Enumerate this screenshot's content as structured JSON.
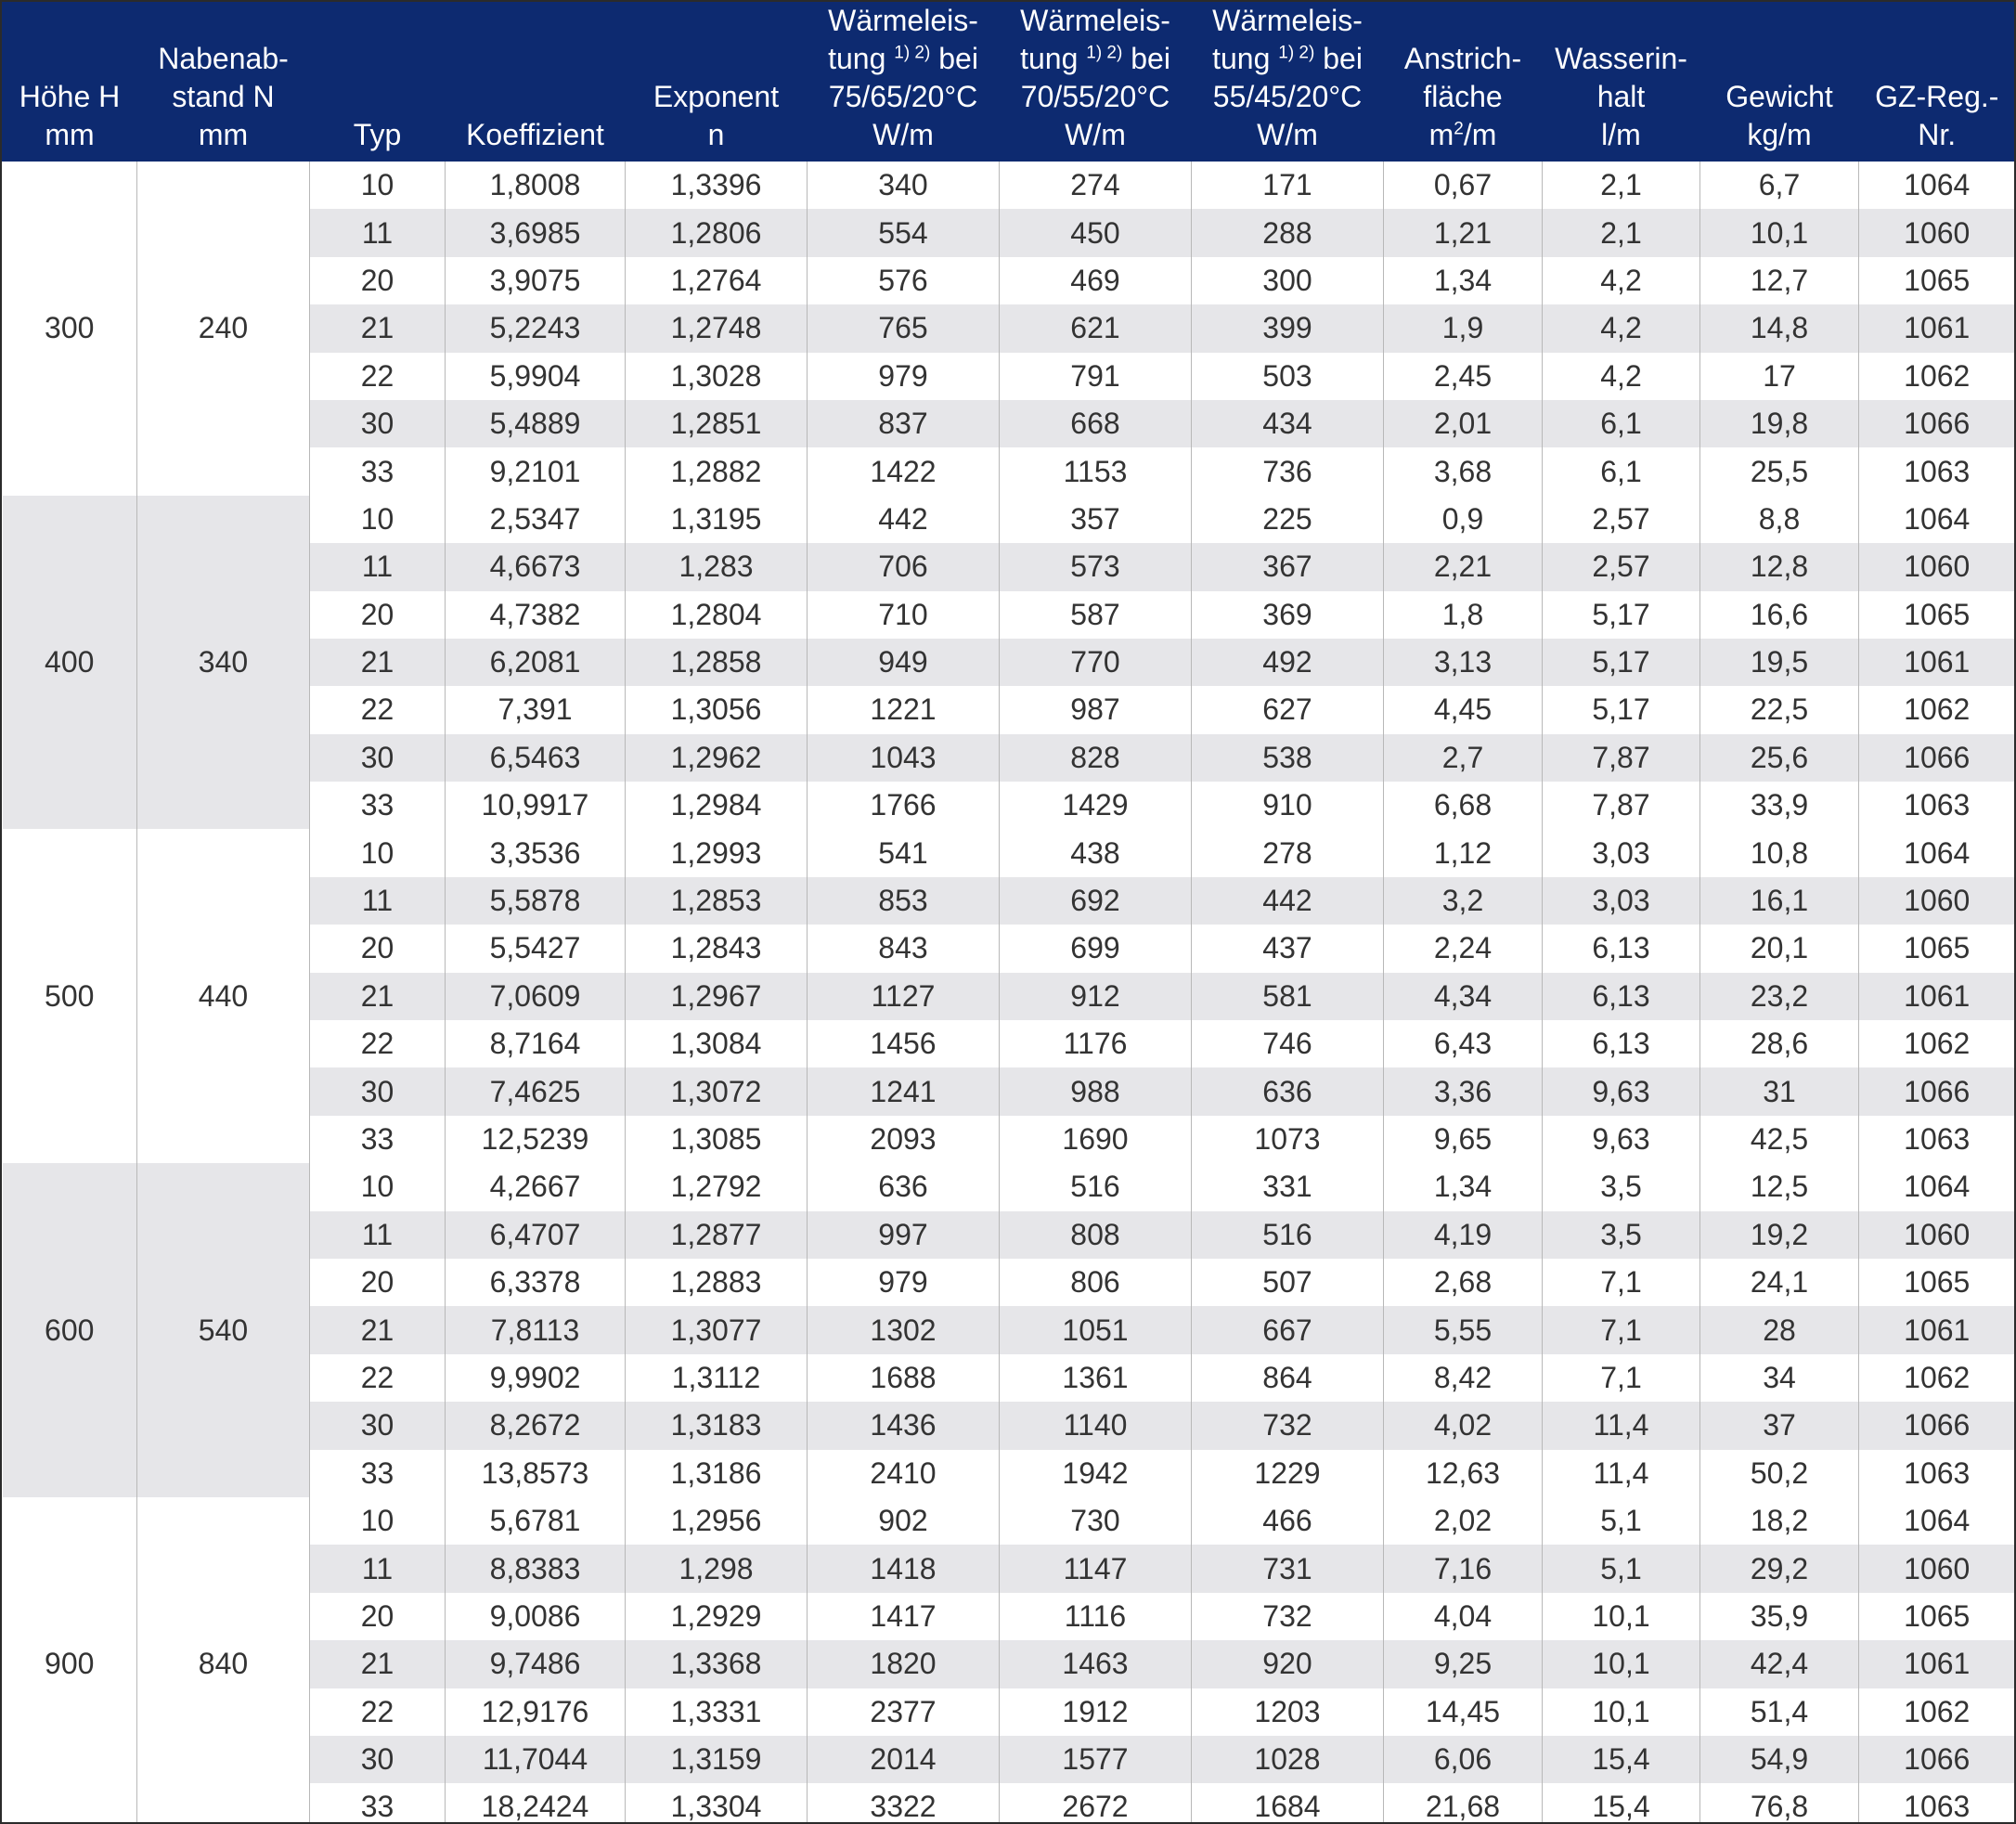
{
  "headers": [
    [
      "Höhe H",
      "mm"
    ],
    [
      "Nabenab-",
      "stand N",
      "mm"
    ],
    [
      "Typ"
    ],
    [
      "Koeffizient"
    ],
    [
      "Exponent",
      "n"
    ],
    [
      "Wärmeleis-",
      "tung |1) 2)| bei",
      "75/65/20°C",
      "W/m"
    ],
    [
      "Wärmeleis-",
      "tung |1) 2)| bei",
      "70/55/20°C",
      "W/m"
    ],
    [
      "Wärmeleis-",
      "tung |1) 2)| bei",
      "55/45/20°C",
      "W/m"
    ],
    [
      "Anstrich-",
      "fläche",
      "m|2|/m"
    ],
    [
      "Wasserin-",
      "halt",
      "l/m"
    ],
    [
      "Gewicht",
      "kg/m"
    ],
    [
      "GZ-Reg.-",
      "Nr."
    ]
  ],
  "groups": [
    {
      "hoehe": "300",
      "nabenabstand": "240",
      "rows": [
        [
          "10",
          "1,8008",
          "1,3396",
          "340",
          "274",
          "171",
          "0,67",
          "2,1",
          "6,7",
          "1064"
        ],
        [
          "11",
          "3,6985",
          "1,2806",
          "554",
          "450",
          "288",
          "1,21",
          "2,1",
          "10,1",
          "1060"
        ],
        [
          "20",
          "3,9075",
          "1,2764",
          "576",
          "469",
          "300",
          "1,34",
          "4,2",
          "12,7",
          "1065"
        ],
        [
          "21",
          "5,2243",
          "1,2748",
          "765",
          "621",
          "399",
          "1,9",
          "4,2",
          "14,8",
          "1061"
        ],
        [
          "22",
          "5,9904",
          "1,3028",
          "979",
          "791",
          "503",
          "2,45",
          "4,2",
          "17",
          "1062"
        ],
        [
          "30",
          "5,4889",
          "1,2851",
          "837",
          "668",
          "434",
          "2,01",
          "6,1",
          "19,8",
          "1066"
        ],
        [
          "33",
          "9,2101",
          "1,2882",
          "1422",
          "1153",
          "736",
          "3,68",
          "6,1",
          "25,5",
          "1063"
        ]
      ]
    },
    {
      "hoehe": "400",
      "nabenabstand": "340",
      "rows": [
        [
          "10",
          "2,5347",
          "1,3195",
          "442",
          "357",
          "225",
          "0,9",
          "2,57",
          "8,8",
          "1064"
        ],
        [
          "11",
          "4,6673",
          "1,283",
          "706",
          "573",
          "367",
          "2,21",
          "2,57",
          "12,8",
          "1060"
        ],
        [
          "20",
          "4,7382",
          "1,2804",
          "710",
          "587",
          "369",
          "1,8",
          "5,17",
          "16,6",
          "1065"
        ],
        [
          "21",
          "6,2081",
          "1,2858",
          "949",
          "770",
          "492",
          "3,13",
          "5,17",
          "19,5",
          "1061"
        ],
        [
          "22",
          "7,391",
          "1,3056",
          "1221",
          "987",
          "627",
          "4,45",
          "5,17",
          "22,5",
          "1062"
        ],
        [
          "30",
          "6,5463",
          "1,2962",
          "1043",
          "828",
          "538",
          "2,7",
          "7,87",
          "25,6",
          "1066"
        ],
        [
          "33",
          "10,9917",
          "1,2984",
          "1766",
          "1429",
          "910",
          "6,68",
          "7,87",
          "33,9",
          "1063"
        ]
      ]
    },
    {
      "hoehe": "500",
      "nabenabstand": "440",
      "rows": [
        [
          "10",
          "3,3536",
          "1,2993",
          "541",
          "438",
          "278",
          "1,12",
          "3,03",
          "10,8",
          "1064"
        ],
        [
          "11",
          "5,5878",
          "1,2853",
          "853",
          "692",
          "442",
          "3,2",
          "3,03",
          "16,1",
          "1060"
        ],
        [
          "20",
          "5,5427",
          "1,2843",
          "843",
          "699",
          "437",
          "2,24",
          "6,13",
          "20,1",
          "1065"
        ],
        [
          "21",
          "7,0609",
          "1,2967",
          "1127",
          "912",
          "581",
          "4,34",
          "6,13",
          "23,2",
          "1061"
        ],
        [
          "22",
          "8,7164",
          "1,3084",
          "1456",
          "1176",
          "746",
          "6,43",
          "6,13",
          "28,6",
          "1062"
        ],
        [
          "30",
          "7,4625",
          "1,3072",
          "1241",
          "988",
          "636",
          "3,36",
          "9,63",
          "31",
          "1066"
        ],
        [
          "33",
          "12,5239",
          "1,3085",
          "2093",
          "1690",
          "1073",
          "9,65",
          "9,63",
          "42,5",
          "1063"
        ]
      ]
    },
    {
      "hoehe": "600",
      "nabenabstand": "540",
      "rows": [
        [
          "10",
          "4,2667",
          "1,2792",
          "636",
          "516",
          "331",
          "1,34",
          "3,5",
          "12,5",
          "1064"
        ],
        [
          "11",
          "6,4707",
          "1,2877",
          "997",
          "808",
          "516",
          "4,19",
          "3,5",
          "19,2",
          "1060"
        ],
        [
          "20",
          "6,3378",
          "1,2883",
          "979",
          "806",
          "507",
          "2,68",
          "7,1",
          "24,1",
          "1065"
        ],
        [
          "21",
          "7,8113",
          "1,3077",
          "1302",
          "1051",
          "667",
          "5,55",
          "7,1",
          "28",
          "1061"
        ],
        [
          "22",
          "9,9902",
          "1,3112",
          "1688",
          "1361",
          "864",
          "8,42",
          "7,1",
          "34",
          "1062"
        ],
        [
          "30",
          "8,2672",
          "1,3183",
          "1436",
          "1140",
          "732",
          "4,02",
          "11,4",
          "37",
          "1066"
        ],
        [
          "33",
          "13,8573",
          "1,3186",
          "2410",
          "1942",
          "1229",
          "12,63",
          "11,4",
          "50,2",
          "1063"
        ]
      ]
    },
    {
      "hoehe": "900",
      "nabenabstand": "840",
      "rows": [
        [
          "10",
          "5,6781",
          "1,2956",
          "902",
          "730",
          "466",
          "2,02",
          "5,1",
          "18,2",
          "1064"
        ],
        [
          "11",
          "8,8383",
          "1,298",
          "1418",
          "1147",
          "731",
          "7,16",
          "5,1",
          "29,2",
          "1060"
        ],
        [
          "20",
          "9,0086",
          "1,2929",
          "1417",
          "1116",
          "732",
          "4,04",
          "10,1",
          "35,9",
          "1065"
        ],
        [
          "21",
          "9,7486",
          "1,3368",
          "1820",
          "1463",
          "920",
          "9,25",
          "10,1",
          "42,4",
          "1061"
        ],
        [
          "22",
          "12,9176",
          "1,3331",
          "2377",
          "1912",
          "1203",
          "14,45",
          "10,1",
          "51,4",
          "1062"
        ],
        [
          "30",
          "11,7044",
          "1,3159",
          "2014",
          "1577",
          "1028",
          "6,06",
          "15,4",
          "54,9",
          "1066"
        ],
        [
          "33",
          "18,2424",
          "1,3304",
          "3322",
          "2672",
          "1684",
          "21,68",
          "15,4",
          "76,8",
          "1063"
        ]
      ]
    }
  ],
  "colors": {
    "header_bg": "#0d2a70",
    "header_text": "#ffffff",
    "row_alt_bg": "#e6e6e9",
    "cell_text": "#333333"
  }
}
